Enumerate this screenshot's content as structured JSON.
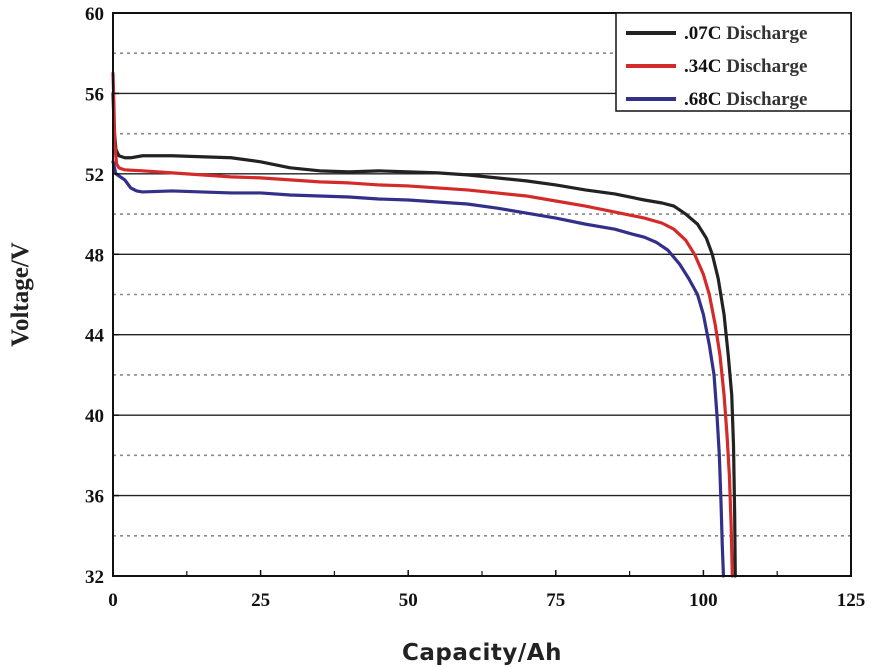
{
  "chart_data": {
    "type": "line",
    "title": "",
    "xlabel": "Capacity/Ah",
    "ylabel": "Voltage/V",
    "xlim": [
      0,
      125
    ],
    "ylim": [
      32,
      60
    ],
    "x_ticks": [
      0,
      25,
      50,
      75,
      100,
      125
    ],
    "x_tick_labels": [
      "0",
      "25",
      "50",
      "75",
      "100",
      "125"
    ],
    "y_ticks": [
      32,
      36,
      40,
      44,
      48,
      52,
      56,
      60
    ],
    "y_tick_labels": [
      "32",
      "36",
      "40",
      "44",
      "48",
      "52",
      "56",
      "60"
    ],
    "grid": {
      "major_y": [
        36,
        40,
        44,
        48,
        52,
        56
      ],
      "minor_y_dotted": [
        34,
        38,
        42,
        46,
        50,
        54,
        58
      ],
      "major_style": "solid",
      "minor_style": "dotted"
    },
    "legend": {
      "position": "top-right",
      "entries": [
        {
          "prefix": ".07C",
          "suffix": "Discharge"
        },
        {
          "prefix": ".34C",
          "suffix": "Discharge"
        },
        {
          "prefix": ".68C",
          "suffix": "Discharge"
        }
      ]
    },
    "series": [
      {
        "name": ".07C Discharge",
        "color": "#222222",
        "points": [
          [
            0,
            56.0
          ],
          [
            0.2,
            54.2
          ],
          [
            0.5,
            53.2
          ],
          [
            1,
            52.9
          ],
          [
            2,
            52.8
          ],
          [
            3,
            52.8
          ],
          [
            5,
            52.9
          ],
          [
            10,
            52.9
          ],
          [
            15,
            52.85
          ],
          [
            20,
            52.8
          ],
          [
            25,
            52.6
          ],
          [
            30,
            52.3
          ],
          [
            35,
            52.15
          ],
          [
            40,
            52.1
          ],
          [
            45,
            52.15
          ],
          [
            50,
            52.1
          ],
          [
            55,
            52.05
          ],
          [
            60,
            51.95
          ],
          [
            65,
            51.8
          ],
          [
            70,
            51.65
          ],
          [
            75,
            51.45
          ],
          [
            80,
            51.2
          ],
          [
            85,
            51.0
          ],
          [
            90,
            50.7
          ],
          [
            93,
            50.55
          ],
          [
            95,
            50.4
          ],
          [
            97,
            50.0
          ],
          [
            99,
            49.5
          ],
          [
            100.5,
            48.8
          ],
          [
            101.5,
            48.0
          ],
          [
            102.5,
            46.8
          ],
          [
            103.5,
            45.0
          ],
          [
            104.2,
            43.0
          ],
          [
            104.8,
            41.0
          ],
          [
            105.1,
            38.5
          ],
          [
            105.3,
            35.0
          ],
          [
            105.4,
            32.0
          ]
        ]
      },
      {
        "name": ".34C Discharge",
        "color": "#d42a2a",
        "points": [
          [
            0,
            57.0
          ],
          [
            0.15,
            55.5
          ],
          [
            0.3,
            53.5
          ],
          [
            0.6,
            52.5
          ],
          [
            1,
            52.3
          ],
          [
            2,
            52.2
          ],
          [
            5,
            52.15
          ],
          [
            10,
            52.05
          ],
          [
            15,
            51.95
          ],
          [
            20,
            51.85
          ],
          [
            25,
            51.8
          ],
          [
            30,
            51.7
          ],
          [
            35,
            51.6
          ],
          [
            40,
            51.55
          ],
          [
            45,
            51.45
          ],
          [
            50,
            51.4
          ],
          [
            55,
            51.3
          ],
          [
            60,
            51.2
          ],
          [
            65,
            51.05
          ],
          [
            70,
            50.9
          ],
          [
            75,
            50.65
          ],
          [
            80,
            50.4
          ],
          [
            85,
            50.1
          ],
          [
            90,
            49.8
          ],
          [
            93,
            49.55
          ],
          [
            95,
            49.25
          ],
          [
            97,
            48.7
          ],
          [
            98.5,
            48.0
          ],
          [
            100,
            47.0
          ],
          [
            101,
            46.0
          ],
          [
            102,
            44.5
          ],
          [
            102.8,
            43.0
          ],
          [
            103.5,
            41.0
          ],
          [
            104,
            39.0
          ],
          [
            104.4,
            37.0
          ],
          [
            104.7,
            34.5
          ],
          [
            104.9,
            32.0
          ]
        ]
      },
      {
        "name": ".68C Discharge",
        "color": "#33308a",
        "points": [
          [
            0,
            52.6
          ],
          [
            0.5,
            52.0
          ],
          [
            1,
            51.9
          ],
          [
            2,
            51.7
          ],
          [
            3,
            51.3
          ],
          [
            4,
            51.15
          ],
          [
            5,
            51.1
          ],
          [
            10,
            51.15
          ],
          [
            15,
            51.1
          ],
          [
            20,
            51.05
          ],
          [
            25,
            51.05
          ],
          [
            30,
            50.95
          ],
          [
            35,
            50.9
          ],
          [
            40,
            50.85
          ],
          [
            45,
            50.75
          ],
          [
            50,
            50.7
          ],
          [
            55,
            50.6
          ],
          [
            60,
            50.5
          ],
          [
            65,
            50.3
          ],
          [
            70,
            50.05
          ],
          [
            75,
            49.8
          ],
          [
            80,
            49.5
          ],
          [
            85,
            49.25
          ],
          [
            88,
            49.0
          ],
          [
            90,
            48.85
          ],
          [
            92,
            48.6
          ],
          [
            94,
            48.2
          ],
          [
            96,
            47.5
          ],
          [
            97.5,
            46.8
          ],
          [
            99,
            46.0
          ],
          [
            100,
            45.0
          ],
          [
            101,
            43.5
          ],
          [
            101.8,
            42.0
          ],
          [
            102.3,
            40.0
          ],
          [
            102.7,
            38.0
          ],
          [
            103,
            35.5
          ],
          [
            103.2,
            33.5
          ],
          [
            103.4,
            32.0
          ]
        ]
      }
    ]
  }
}
